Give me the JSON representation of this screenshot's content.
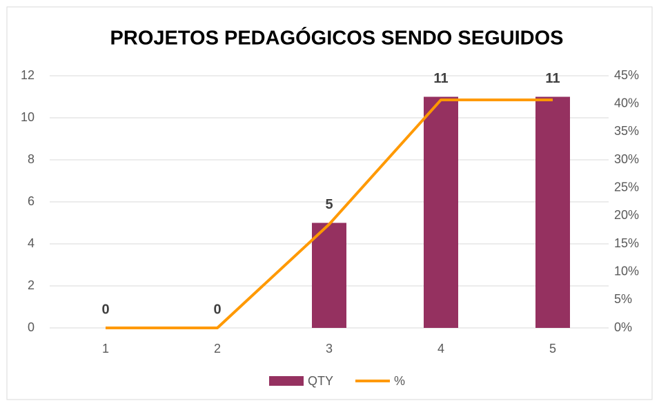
{
  "chart_data": {
    "type": "bar",
    "title": "PROJETOS PEDAGÓGICOS SENDO SEGUIDOS",
    "categories": [
      "1",
      "2",
      "3",
      "4",
      "5"
    ],
    "series": [
      {
        "name": "QTY",
        "type": "bar",
        "color": "#953160",
        "values": [
          0,
          0,
          5,
          11,
          11
        ]
      },
      {
        "name": "%",
        "type": "line",
        "axis": "y2",
        "color": "#ff9900",
        "values": [
          0,
          0,
          18.5,
          40.7,
          40.7
        ]
      }
    ],
    "ylim": [
      0,
      12
    ],
    "yticks": [
      0,
      2,
      4,
      6,
      8,
      10,
      12
    ],
    "y2lim": [
      0,
      45
    ],
    "y2ticks": [
      {
        "value": 0,
        "label": "0%"
      },
      {
        "value": 5,
        "label": "5%"
      },
      {
        "value": 10,
        "label": "10%"
      },
      {
        "value": 15,
        "label": "15%"
      },
      {
        "value": 20,
        "label": "20%"
      },
      {
        "value": 25,
        "label": "25%"
      },
      {
        "value": 30,
        "label": "30%"
      },
      {
        "value": 35,
        "label": "35%"
      },
      {
        "value": 40,
        "label": "40%"
      },
      {
        "value": 45,
        "label": "45%"
      }
    ],
    "grid": true,
    "legend": "bottom"
  }
}
